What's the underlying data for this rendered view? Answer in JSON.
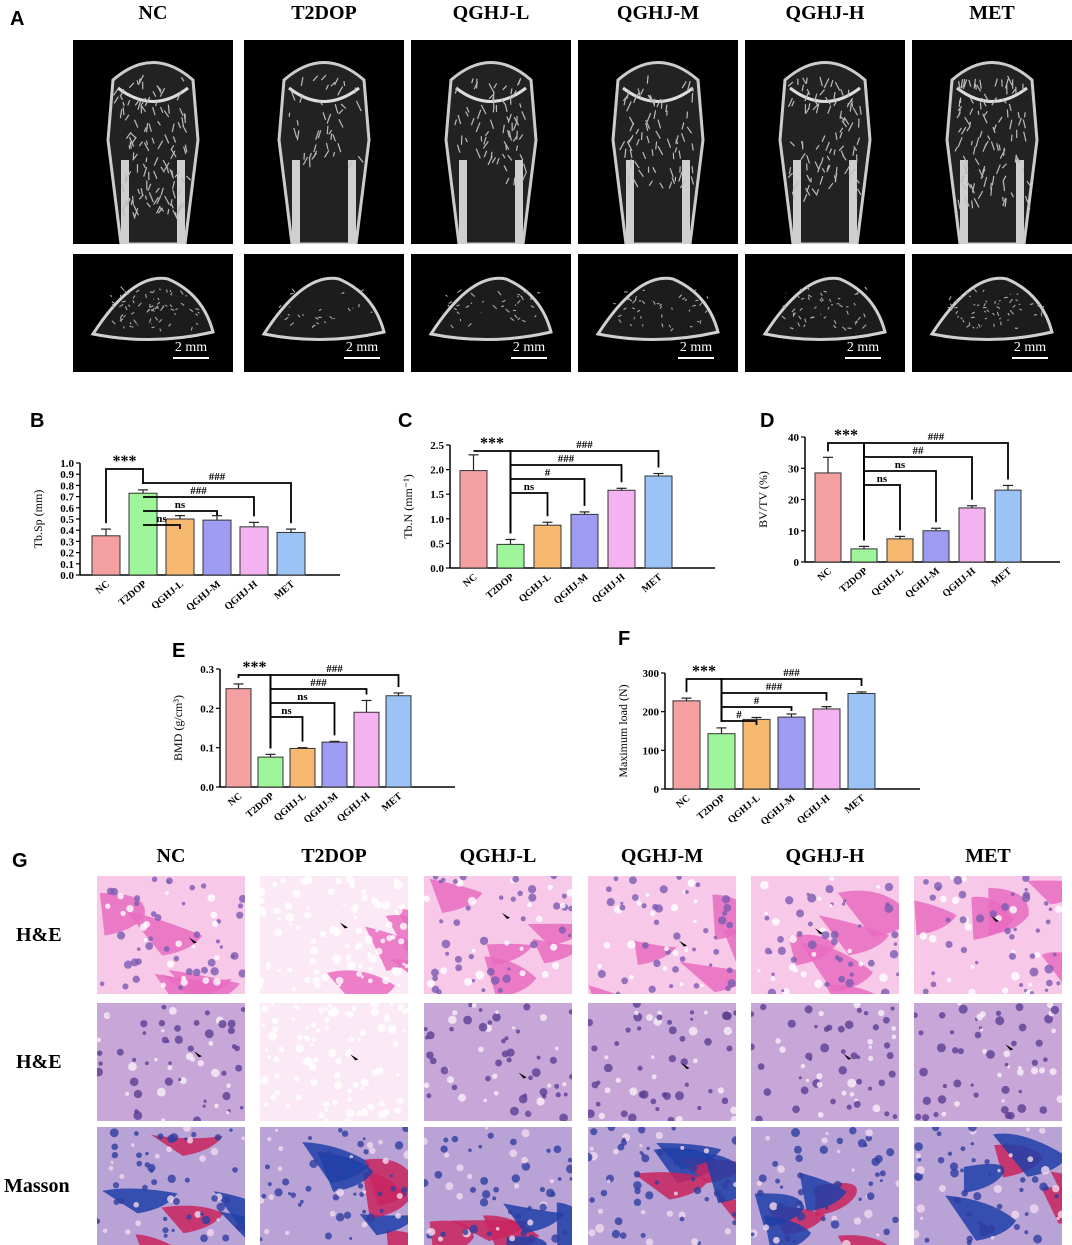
{
  "panels": {
    "A": "A",
    "B": "B",
    "C": "C",
    "D": "D",
    "E": "E",
    "F": "F",
    "G": "G"
  },
  "groups": [
    "NC",
    "T2DOP",
    "QGHJ-L",
    "QGHJ-M",
    "QGHJ-H",
    "MET"
  ],
  "scale_bar_label": "2 mm",
  "histology_rows": [
    "H&E",
    "H&E",
    "Masson"
  ],
  "colors": {
    "NC": "#f4a0a0",
    "T2DOP": "#9ef59a",
    "QGHJ-L": "#f7b86f",
    "QGHJ-M": "#9d9cf2",
    "QGHJ-H": "#f4b3f0",
    "MET": "#9cc3f5"
  },
  "chart_data": [
    {
      "id": "B",
      "type": "bar",
      "ylabel": "Tb.Sp (mm)",
      "ylim": [
        0,
        1.0
      ],
      "yticks": [
        "0.0",
        "0.1",
        "0.2",
        "0.3",
        "0.4",
        "0.5",
        "0.6",
        "0.7",
        "0.8",
        "0.9",
        "1.0"
      ],
      "categories": [
        "NC",
        "T2DOP",
        "QGHJ-L",
        "QGHJ-M",
        "QGHJ-H",
        "MET"
      ],
      "values": [
        0.35,
        0.73,
        0.5,
        0.49,
        0.43,
        0.38
      ],
      "errors": [
        0.06,
        0.03,
        0.03,
        0.04,
        0.04,
        0.03
      ],
      "annotations": [
        "***",
        "###",
        "###",
        "ns",
        "ns"
      ]
    },
    {
      "id": "C",
      "type": "bar",
      "ylabel": "Tb.N (mm⁻¹)",
      "ylim": [
        0,
        2.5
      ],
      "yticks": [
        "0.0",
        "0.5",
        "1.0",
        "1.5",
        "2.0",
        "2.5"
      ],
      "categories": [
        "NC",
        "T2DOP",
        "QGHJ-L",
        "QGHJ-M",
        "QGHJ-H",
        "MET"
      ],
      "values": [
        1.98,
        0.48,
        0.87,
        1.09,
        1.58,
        1.87
      ],
      "errors": [
        0.32,
        0.1,
        0.06,
        0.05,
        0.04,
        0.05
      ],
      "annotations": [
        "***",
        "###",
        "###",
        "#",
        "ns"
      ]
    },
    {
      "id": "D",
      "type": "bar",
      "ylabel": "BV/TV (%)",
      "ylim": [
        0,
        40
      ],
      "yticks": [
        "0",
        "10",
        "20",
        "30",
        "40"
      ],
      "categories": [
        "NC",
        "T2DOP",
        "QGHJ-L",
        "QGHJ-M",
        "QGHJ-H",
        "MET"
      ],
      "values": [
        28.5,
        4.2,
        7.4,
        10.0,
        17.3,
        23.0
      ],
      "errors": [
        5.0,
        0.8,
        0.8,
        0.8,
        0.7,
        1.5
      ],
      "annotations": [
        "***",
        "###",
        "##",
        "ns",
        "ns"
      ]
    },
    {
      "id": "E",
      "type": "bar",
      "ylabel": "BMD (g/cm³)",
      "ylim": [
        0,
        0.3
      ],
      "yticks": [
        "0.0",
        "0.1",
        "0.2",
        "0.3"
      ],
      "categories": [
        "NC",
        "T2DOP",
        "QGHJ-L",
        "QGHJ-M",
        "QGHJ-H",
        "MET"
      ],
      "values": [
        0.25,
        0.076,
        0.098,
        0.114,
        0.19,
        0.232
      ],
      "errors": [
        0.012,
        0.007,
        0.002,
        0.002,
        0.03,
        0.007
      ],
      "annotations": [
        "***",
        "###",
        "###",
        "ns",
        "ns"
      ]
    },
    {
      "id": "F",
      "type": "bar",
      "ylabel": "Maximum load (N)",
      "ylim": [
        0,
        300
      ],
      "yticks": [
        "0",
        "100",
        "200",
        "300"
      ],
      "categories": [
        "NC",
        "T2DOP",
        "QGHJ-L",
        "QGHJ-M",
        "QGHJ-H",
        "MET"
      ],
      "values": [
        228,
        143,
        180,
        186,
        207,
        247
      ],
      "errors": [
        7,
        15,
        5,
        8,
        6,
        4
      ],
      "annotations": [
        "***",
        "###",
        "###",
        "#",
        "#"
      ]
    }
  ]
}
